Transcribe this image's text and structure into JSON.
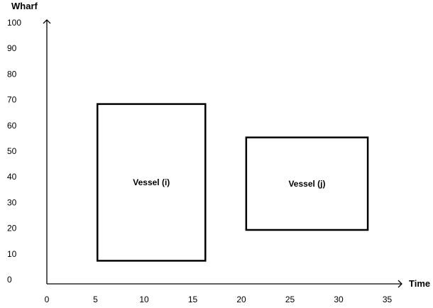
{
  "chart_data": {
    "type": "rectangles",
    "title": "",
    "xlabel": "Time",
    "ylabel": "Wharf",
    "x_ticks": [
      0,
      5,
      10,
      15,
      20,
      25,
      30,
      35
    ],
    "y_ticks": [
      0,
      10,
      20,
      30,
      40,
      50,
      60,
      70,
      80,
      90,
      100
    ],
    "xlim": [
      0,
      35
    ],
    "ylim": [
      0,
      100
    ],
    "grid": false,
    "rectangles": [
      {
        "label": "Vessel (i)",
        "x_start": 5.2,
        "x_end": 16.3,
        "y_start": 9,
        "y_end": 70
      },
      {
        "label": "Vessel (j)",
        "x_start": 20.5,
        "x_end": 33,
        "y_start": 21,
        "y_end": 57
      }
    ]
  }
}
